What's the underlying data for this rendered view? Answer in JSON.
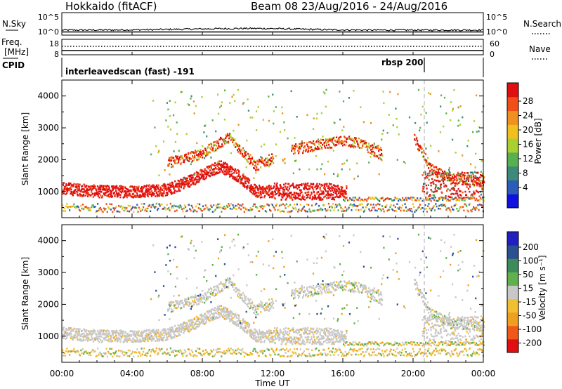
{
  "header": {
    "station": "Hokkaido (fitACF)",
    "beam_info": "Beam 08  23/Aug/2016 - 24/Aug/2016"
  },
  "nsky_panel": {
    "left_label": "N.Sky",
    "right_label": "N.Search",
    "left_ticks": [
      "10^5",
      "10^0"
    ],
    "right_ticks": [
      "10^5",
      "10^0"
    ]
  },
  "freq_panel": {
    "left_label_1": "Freq.",
    "left_label_2": "[MHz]",
    "right_label": "Nave",
    "left_ticks": [
      "18",
      "8"
    ],
    "right_ticks": [
      "60",
      "0"
    ]
  },
  "cpid_panel": {
    "label": "CPID",
    "mode_text": "interleavedscan (fast) -191",
    "mode_text_2": "rbsp 200"
  },
  "chart_data": [
    {
      "type": "heatmap",
      "title": "",
      "quantity": "Power",
      "ylabel": "Slant Range [km]",
      "xlabel": "",
      "ylim": [
        180,
        4500
      ],
      "yticks": [
        "1000",
        "2000",
        "3000",
        "4000"
      ],
      "xlim": [
        0,
        24
      ],
      "colorbar": {
        "label": "Power [dB]",
        "ticks": [
          "28",
          "24",
          "20",
          "16",
          "12",
          "8",
          "4"
        ],
        "colors": [
          "#1010e0",
          "#2a5cb8",
          "#3d8a7a",
          "#58b050",
          "#a8d030",
          "#f0c020",
          "#f09020",
          "#f05018",
          "#e01010"
        ]
      },
      "features": [
        {
          "name": "main band",
          "x": [
            0,
            2,
            4,
            6,
            7.5,
            9,
            10,
            11,
            12,
            13,
            14,
            16
          ],
          "y": [
            1100,
            1000,
            1000,
            1050,
            1400,
            1800,
            1500,
            1000,
            1000,
            1000,
            1000,
            1000
          ]
        },
        {
          "name": "upper band",
          "x": [
            6,
            8,
            9.5,
            11,
            13,
            16,
            17,
            18,
            20,
            21,
            22,
            24
          ],
          "y": [
            1900,
            2200,
            2700,
            1800,
            2300,
            2600,
            2500,
            2200,
            2700,
            1700,
            1400,
            1300
          ]
        }
      ]
    },
    {
      "type": "heatmap",
      "title": "",
      "quantity": "Velocity",
      "ylabel": "Slant Range [km]",
      "xlabel": "Time UT",
      "ylim": [
        180,
        4500
      ],
      "yticks": [
        "1000",
        "2000",
        "3000",
        "4000"
      ],
      "xticks": [
        "00:00",
        "04:00",
        "08:00",
        "12:00",
        "16:00",
        "20:00",
        "00:00"
      ],
      "xlim": [
        0,
        24
      ],
      "colorbar": {
        "label": "Velocity [m s⁻¹]",
        "ticks": [
          "200",
          "100",
          "50",
          "15",
          "-15",
          "-50",
          "-100",
          "-200"
        ],
        "colors": [
          "#e01010",
          "#f05a18",
          "#f0a020",
          "#f0c030",
          "#c8c8c8",
          "#60b050",
          "#3d8a5a",
          "#2a5090",
          "#2020c0"
        ]
      }
    }
  ]
}
